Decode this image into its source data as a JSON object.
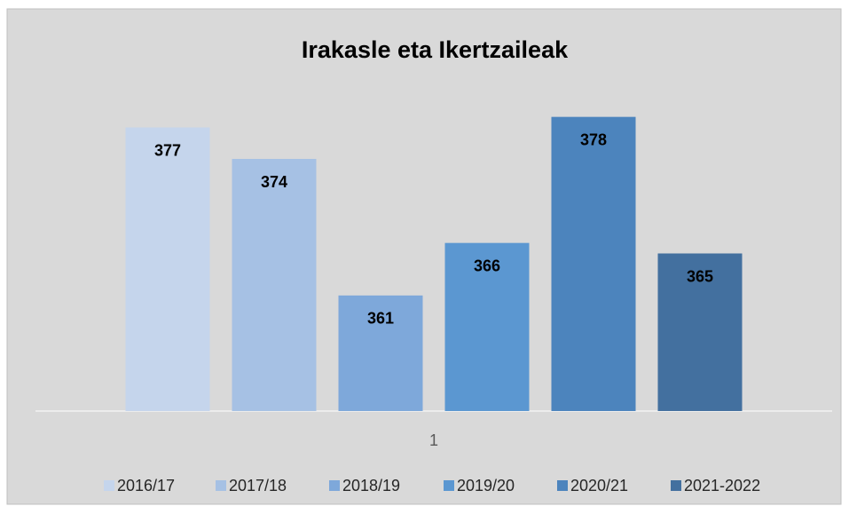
{
  "chart_data": {
    "type": "bar",
    "title": "Irakasle eta Ikertzaileak",
    "categories": [
      "1"
    ],
    "series": [
      {
        "name": "2016/17",
        "color": "#c5d5ec",
        "values": [
          377
        ]
      },
      {
        "name": "2017/18",
        "color": "#a6c1e4",
        "values": [
          374
        ]
      },
      {
        "name": "2018/19",
        "color": "#7ea8da",
        "values": [
          361
        ]
      },
      {
        "name": "2019/20",
        "color": "#5b97d1",
        "values": [
          366
        ]
      },
      {
        "name": "2020/21",
        "color": "#4c84bd",
        "values": [
          378
        ]
      },
      {
        "name": "2021-2022",
        "color": "#43709f",
        "values": [
          365
        ]
      }
    ],
    "ylim": [
      350,
      380
    ],
    "legend": "bottom"
  }
}
